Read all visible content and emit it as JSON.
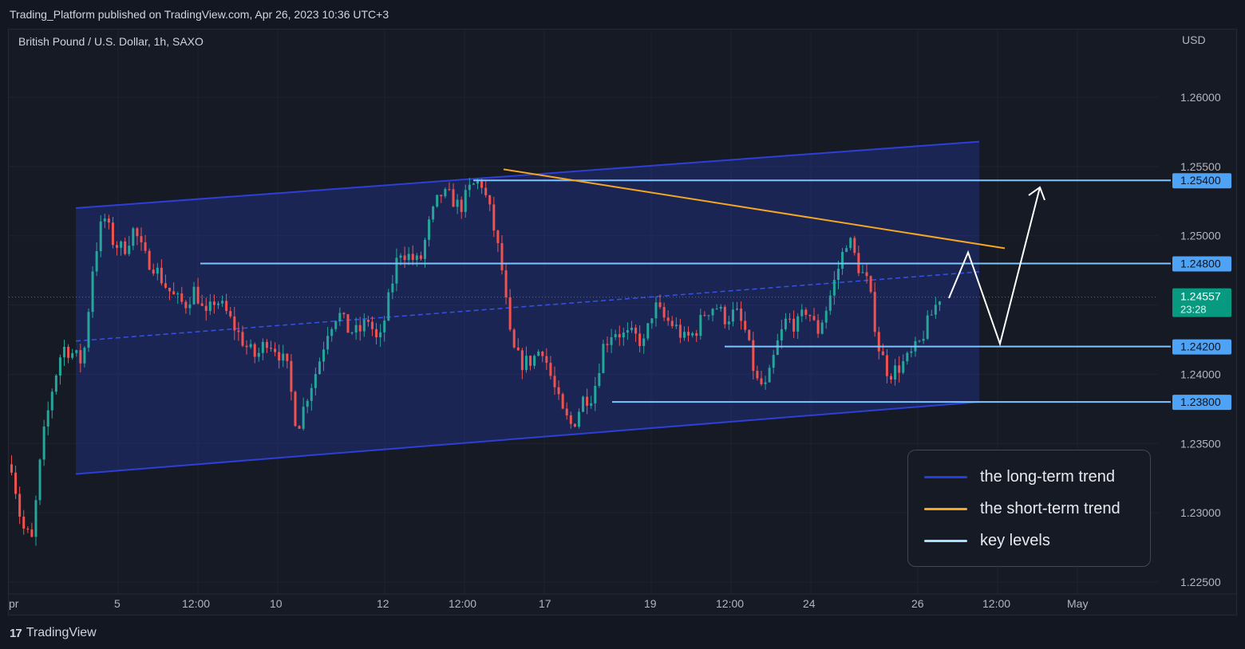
{
  "header": {
    "published_text": "Trading_Platform published on TradingView.com, Apr 26, 2023 10:36 UTC+3"
  },
  "footer": {
    "logo_mark": "17",
    "brand": "TradingView"
  },
  "colors": {
    "background": "#131722",
    "chart_bg": "#161a25",
    "up": "#26a69a",
    "down": "#ef5350",
    "channel": "#2e3fd6",
    "short_trend": "#f5a623",
    "key_level": "#7fc4ff",
    "last_price": "#089981"
  },
  "legend": {
    "items": [
      {
        "label": "the long-term trend",
        "color": "#1f3fe0"
      },
      {
        "label": "the short-term trend",
        "color": "#f5a623"
      },
      {
        "label": "key levels",
        "color": "#a8e0ff"
      }
    ]
  },
  "chart_data": {
    "type": "candlestick",
    "symbol": "British Pound / U.S. Dollar, 1h, SAXO",
    "currency": "USD",
    "ylim": [
      1.2245,
      1.2625
    ],
    "y_ticks": [
      "1.26000",
      "1.25500",
      "1.25000",
      "1.24500",
      "1.24000",
      "1.23500",
      "1.23000",
      "1.22500"
    ],
    "x_ticks": [
      "pr",
      "5",
      "12:00",
      "10",
      "12",
      "12:00",
      "17",
      "19",
      "12:00",
      "24",
      "26",
      "12:00",
      "May"
    ],
    "key_levels": [
      {
        "label": "1.25400",
        "value": 1.254
      },
      {
        "label": "1.24800",
        "value": 1.248
      },
      {
        "label": "1.24200",
        "value": 1.242
      },
      {
        "label": "1.23800",
        "value": 1.238
      }
    ],
    "last_price": {
      "label": "1.24557",
      "value": 1.24557,
      "countdown": "23:28"
    },
    "price_path": [
      1.2335,
      1.229,
      1.228,
      1.235,
      1.239,
      1.242,
      1.2415,
      1.2408,
      1.248,
      1.2515,
      1.2495,
      1.249,
      1.2505,
      1.2485,
      1.2478,
      1.2465,
      1.2455,
      1.245,
      1.2462,
      1.244,
      1.2455,
      1.2445,
      1.2432,
      1.242,
      1.2412,
      1.2425,
      1.2418,
      1.2405,
      1.236,
      1.2385,
      1.2405,
      1.2432,
      1.2445,
      1.2432,
      1.243,
      1.244,
      1.242,
      1.2455,
      1.249,
      1.2485,
      1.248,
      1.251,
      1.253,
      1.2528,
      1.252,
      1.2535,
      1.254,
      1.2515,
      1.248,
      1.242,
      1.2408,
      1.241,
      1.242,
      1.2395,
      1.2372,
      1.2362,
      1.2382,
      1.2385,
      1.242,
      1.2432,
      1.2428,
      1.2428,
      1.2422,
      1.245,
      1.244,
      1.2435,
      1.2425,
      1.243,
      1.2445,
      1.245,
      1.244,
      1.2445,
      1.243,
      1.2395,
      1.239,
      1.242,
      1.244,
      1.2435,
      1.2448,
      1.243,
      1.245,
      1.2475,
      1.25,
      1.2478,
      1.2465,
      1.242,
      1.24,
      1.2405,
      1.2412,
      1.2422,
      1.244,
      1.2456
    ],
    "annotations": {
      "channel": {
        "upper_start": 1.252,
        "upper_end": 1.2568,
        "lower_start": 1.2328,
        "lower_end": 1.238,
        "mid_start": 1.2424,
        "mid_end": 1.2474
      },
      "short_trend": {
        "start": 1.2548,
        "end": 1.2491
      },
      "projection": [
        1.2455,
        1.2488,
        1.2422,
        1.2535
      ]
    }
  }
}
